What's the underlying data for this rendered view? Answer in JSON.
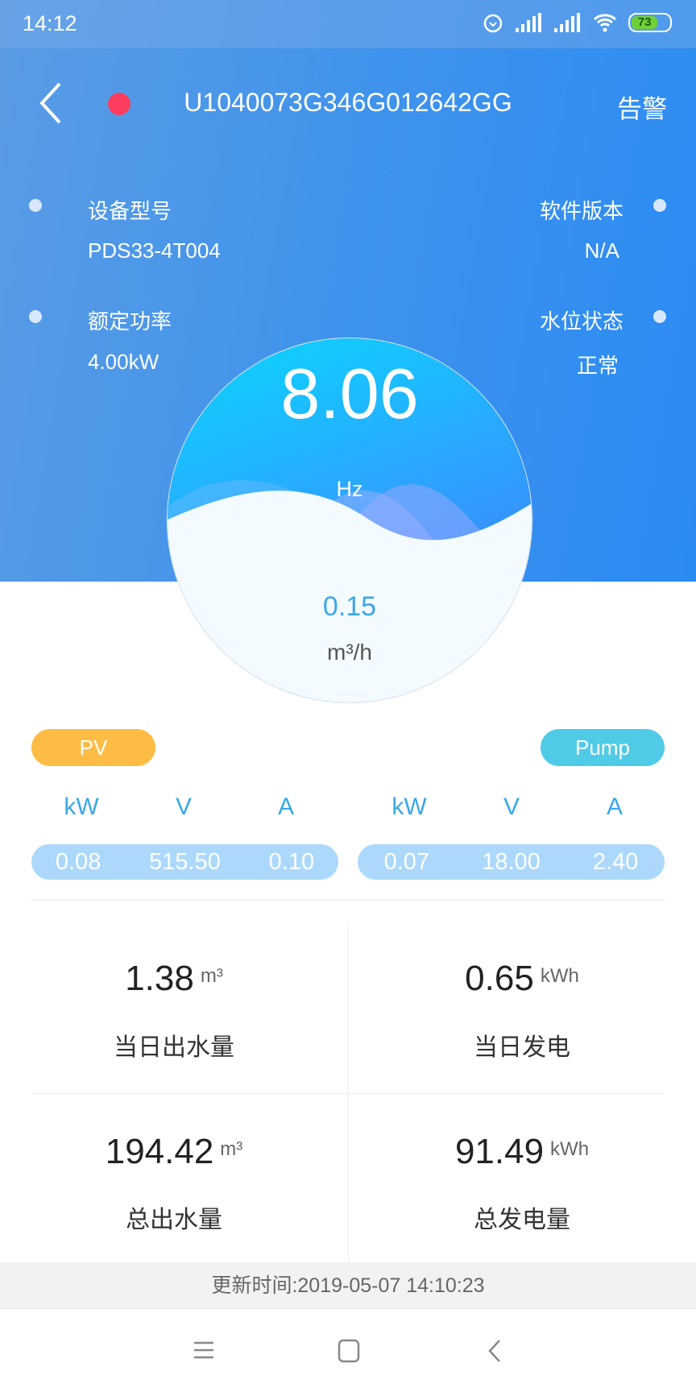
{
  "status_bar": {
    "time": "14:12",
    "battery": "73",
    "icons": [
      "alarm-icon",
      "signal-icon",
      "signal-icon",
      "wifi-icon",
      "battery-icon"
    ]
  },
  "header": {
    "title": "U1040073G346G012642GG",
    "alarm_label": "告警",
    "status_color": "#ff3d5e"
  },
  "info": {
    "model_label": "设备型号",
    "model_value": "PDS33-4T004",
    "software_label": "软件版本",
    "software_value": "N/A",
    "power_label": "额定功率",
    "power_value": "4.00kW",
    "water_label": "水位状态",
    "water_value": "正常"
  },
  "gauge": {
    "frequency": "8.06",
    "frequency_unit": "Hz",
    "flow": "0.15",
    "flow_unit": "m³/h"
  },
  "pv": {
    "label": "PV",
    "color": "#fdbd45",
    "units": [
      "kW",
      "V",
      "A"
    ],
    "values": [
      "0.08",
      "515.50",
      "0.10"
    ]
  },
  "pump": {
    "label": "Pump",
    "color": "#4fcbe8",
    "units": [
      "kW",
      "V",
      "A"
    ],
    "values": [
      "0.07",
      "18.00",
      "2.40"
    ]
  },
  "stats": [
    {
      "value": "1.38",
      "unit": "m³",
      "label": "当日出水量"
    },
    {
      "value": "0.65",
      "unit": "kWh",
      "label": "当日发电"
    },
    {
      "value": "194.42",
      "unit": "m³",
      "label": "总出水量"
    },
    {
      "value": "91.49",
      "unit": "kWh",
      "label": "总发电量"
    }
  ],
  "footer": {
    "update_text": "更新时间:2019-05-07 14:10:23"
  },
  "nav": {
    "icons": [
      "menu-icon",
      "home-icon",
      "back-icon"
    ]
  }
}
